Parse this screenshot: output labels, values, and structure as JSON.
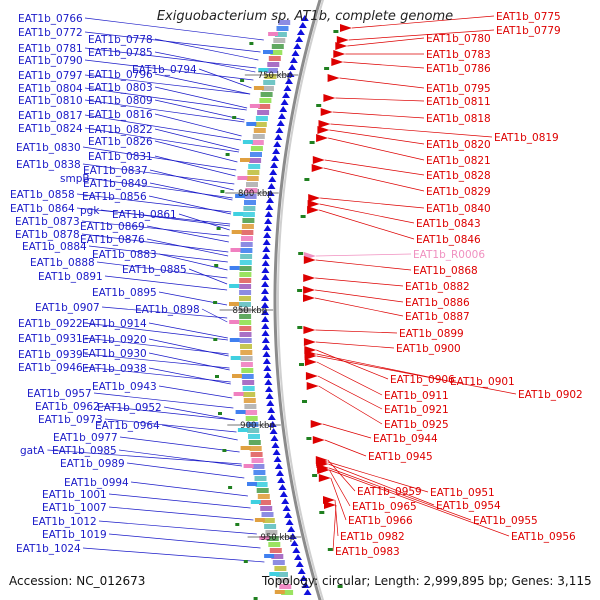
{
  "title": "Exiguobacterium sp. AT1b, complete genome",
  "accession_text": "Accession: NC_012673",
  "topology_text": "Topology: circular; Length: 2,999,895 bp; Genes: 3,115",
  "ticks": [
    "750 kbp",
    "800 kbp",
    "850 kbp",
    "900 kbp",
    "950 kbp"
  ],
  "colors": {
    "left_label": "#1a1ac8",
    "right_label": "#dd0000",
    "rna_label": "#f090c0",
    "forward_strand": "#1010dd",
    "reverse_strand": "#ee0000",
    "backbone": "#8c8c8c"
  },
  "left_labels": [
    "EAT1b_0766",
    "EAT1b_0772",
    "EAT1b_0778",
    "EAT1b_0781",
    "EAT1b_0785",
    "EAT1b_0790",
    "EAT1b_0794",
    "EAT1b_0797",
    "EAT1b_0796",
    "EAT1b_0804",
    "EAT1b_0803",
    "EAT1b_0810",
    "EAT1b_0809",
    "EAT1b_0817",
    "EAT1b_0816",
    "EAT1b_0824",
    "EAT1b_0822",
    "EAT1b_0826",
    "EAT1b_0830",
    "EAT1b_0831",
    "EAT1b_0838",
    "EAT1b_0837",
    "smpB",
    "EAT1b_0849",
    "EAT1b_0858",
    "EAT1b_0856",
    "EAT1b_0864",
    "pgk",
    "EAT1b_0861",
    "EAT1b_0873",
    "EAT1b_0869",
    "EAT1b_0878",
    "EAT1b_0876",
    "EAT1b_0884",
    "EAT1b_0883",
    "EAT1b_0888",
    "EAT1b_0885",
    "EAT1b_0891",
    "EAT1b_0895",
    "EAT1b_0907",
    "EAT1b_0898",
    "EAT1b_0922",
    "EAT1b_0914",
    "EAT1b_0931",
    "EAT1b_0920",
    "EAT1b_0939",
    "EAT1b_0930",
    "EAT1b_0946",
    "EAT1b_0938",
    "EAT1b_0943",
    "EAT1b_0957",
    "EAT1b_0962",
    "EAT1b_0952",
    "EAT1b_0973",
    "EAT1b_0964",
    "EAT1b_0977",
    "gatA",
    "EAT1b_0985",
    "EAT1b_0989",
    "EAT1b_0994",
    "EAT1b_1001",
    "EAT1b_1007",
    "EAT1b_1012",
    "EAT1b_1019",
    "EAT1b_1024"
  ],
  "right_labels": [
    "EAT1b_0775",
    "EAT1b_0779",
    "EAT1b_0780",
    "EAT1b_0783",
    "EAT1b_0786",
    "EAT1b_0795",
    "EAT1b_0811",
    "EAT1b_0818",
    "EAT1b_0819",
    "EAT1b_0820",
    "EAT1b_0821",
    "EAT1b_0828",
    "EAT1b_0829",
    "EAT1b_0840",
    "EAT1b_0843",
    "EAT1b_0846",
    "EAT1b_R0006",
    "EAT1b_0868",
    "EAT1b_0882",
    "EAT1b_0886",
    "EAT1b_0887",
    "EAT1b_0899",
    "EAT1b_0900",
    "EAT1b_0906",
    "EAT1b_0901",
    "EAT1b_0902",
    "EAT1b_0911",
    "EAT1b_0921",
    "EAT1b_0925",
    "EAT1b_0944",
    "EAT1b_0945",
    "EAT1b_0959",
    "EAT1b_0951",
    "EAT1b_0965",
    "EAT1b_0954",
    "EAT1b_0966",
    "EAT1b_0955",
    "EAT1b_0982",
    "EAT1b_0956",
    "EAT1b_0983"
  ]
}
